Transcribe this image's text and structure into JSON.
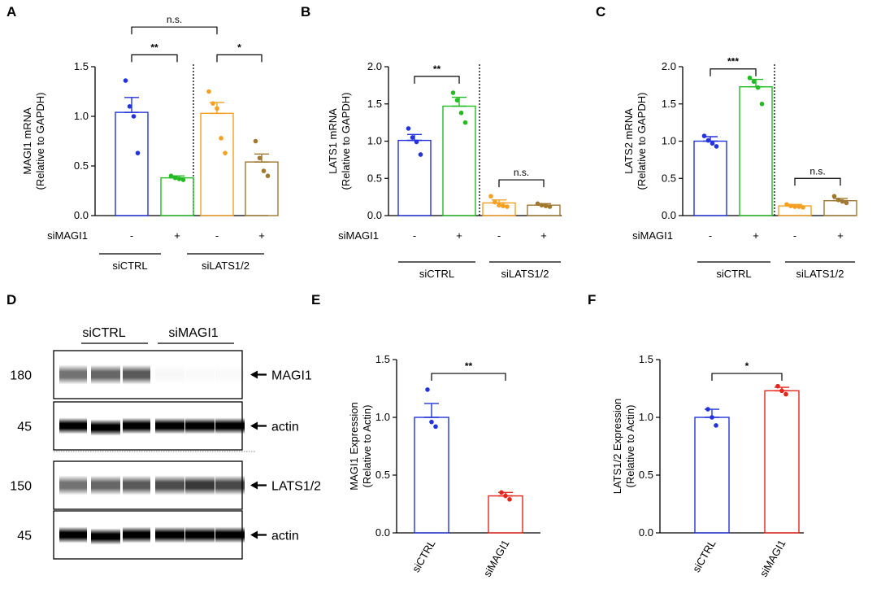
{
  "chart_data": [
    {
      "id": "A",
      "type": "bar",
      "ylabel_line1": "MAGI1 mRNA",
      "ylabel_line2": "(Relative to GAPDH)",
      "ylim": [
        0,
        1.5
      ],
      "yticks": [
        "0.0",
        "0.5",
        "1.0",
        "1.5"
      ],
      "row_label": "siMAGI1",
      "row_signs": [
        "-",
        "+",
        "-",
        "+"
      ],
      "groups": [
        "siCTRL",
        "siLATS1/2"
      ],
      "bars": [
        {
          "value": 1.04,
          "err": 0.15,
          "color": "#2233dd",
          "points": [
            1.36,
            1.1,
            1.0,
            0.63
          ]
        },
        {
          "value": 0.38,
          "err": 0.02,
          "color": "#22bb22",
          "points": [
            0.4,
            0.38,
            0.37,
            0.36
          ]
        },
        {
          "value": 1.03,
          "err": 0.11,
          "color": "#f5a020",
          "points": [
            1.25,
            1.13,
            1.08,
            0.78,
            0.63
          ]
        },
        {
          "value": 0.54,
          "err": 0.08,
          "color": "#a07830",
          "points": [
            0.75,
            0.58,
            0.45,
            0.4
          ]
        }
      ],
      "sig": [
        {
          "text": "**",
          "from": 0,
          "to": 1,
          "y": 1.62
        },
        {
          "text": "*",
          "from": 2,
          "to": 3,
          "y": 1.62
        },
        {
          "text": "n.s.",
          "from": 0,
          "to": 2,
          "y": 1.9
        }
      ]
    },
    {
      "id": "B",
      "type": "bar",
      "ylabel_line1": "LATS1 mRNA",
      "ylabel_line2": "(Relative to GAPDH)",
      "ylim": [
        0,
        2.0
      ],
      "yticks": [
        "0.0",
        "0.5",
        "1.0",
        "1.5",
        "2.0"
      ],
      "row_label": "siMAGI1",
      "row_signs": [
        "-",
        "+",
        "-",
        "+"
      ],
      "groups": [
        "siCTRL",
        "siLATS1/2"
      ],
      "bars": [
        {
          "value": 1.01,
          "err": 0.08,
          "color": "#2233dd",
          "points": [
            1.17,
            1.05,
            0.99,
            0.82
          ]
        },
        {
          "value": 1.47,
          "err": 0.12,
          "color": "#22bb22",
          "points": [
            1.65,
            1.55,
            1.38,
            1.25
          ]
        },
        {
          "value": 0.17,
          "err": 0.04,
          "color": "#f5a020",
          "points": [
            0.26,
            0.18,
            0.14,
            0.13,
            0.12
          ]
        },
        {
          "value": 0.14,
          "err": 0.02,
          "color": "#a07830",
          "points": [
            0.16,
            0.14,
            0.13,
            0.12
          ]
        }
      ],
      "sig": [
        {
          "text": "**",
          "from": 0,
          "to": 1,
          "y": 1.87
        },
        {
          "text": "n.s.",
          "from": 2,
          "to": 3,
          "y": 0.48
        }
      ]
    },
    {
      "id": "C",
      "type": "bar",
      "ylabel_line1": "LATS2 mRNA",
      "ylabel_line2": "(Relative to GAPDH)",
      "ylim": [
        0,
        2.0
      ],
      "yticks": [
        "0.0",
        "0.5",
        "1.0",
        "1.5",
        "2.0"
      ],
      "row_label": "siMAGI1",
      "row_signs": [
        "-",
        "+",
        "-",
        "+"
      ],
      "groups": [
        "siCTRL",
        "siLATS1/2"
      ],
      "bars": [
        {
          "value": 1.0,
          "err": 0.06,
          "color": "#2233dd",
          "points": [
            1.07,
            1.01,
            0.97,
            0.93
          ]
        },
        {
          "value": 1.73,
          "err": 0.1,
          "color": "#22bb22",
          "points": [
            1.85,
            1.8,
            1.72,
            1.5
          ]
        },
        {
          "value": 0.13,
          "err": 0.02,
          "color": "#f5a020",
          "points": [
            0.15,
            0.13,
            0.12,
            0.12,
            0.11
          ]
        },
        {
          "value": 0.2,
          "err": 0.03,
          "color": "#a07830",
          "points": [
            0.26,
            0.21,
            0.19,
            0.17
          ]
        }
      ],
      "sig": [
        {
          "text": "***",
          "from": 0,
          "to": 1,
          "y": 1.97
        },
        {
          "text": "n.s.",
          "from": 2,
          "to": 3,
          "y": 0.5
        }
      ]
    },
    {
      "id": "E",
      "type": "bar",
      "ylabel_line1": "MAGI1 Expression",
      "ylabel_line2": "(Relative to Actin)",
      "ylim": [
        0,
        1.5
      ],
      "yticks": [
        "0.0",
        "0.5",
        "1.0",
        "1.5"
      ],
      "categories": [
        "siCTRL",
        "siMAGI1"
      ],
      "bars": [
        {
          "value": 1.0,
          "err": 0.12,
          "color": "#2233dd",
          "points": [
            1.24,
            0.96,
            0.92
          ]
        },
        {
          "value": 0.32,
          "err": 0.03,
          "color": "#e8251a",
          "points": [
            0.35,
            0.32,
            0.29
          ]
        }
      ],
      "sig": [
        {
          "text": "**",
          "from": 0,
          "to": 1,
          "y": 1.38
        }
      ]
    },
    {
      "id": "F",
      "type": "bar",
      "ylabel_line1": "LATS1/2 Expression",
      "ylabel_line2": "(Relative to Actin)",
      "ylim": [
        0,
        1.5
      ],
      "yticks": [
        "0.0",
        "0.5",
        "1.0",
        "1.5"
      ],
      "categories": [
        "siCTRL",
        "siMAGI1"
      ],
      "bars": [
        {
          "value": 1.0,
          "err": 0.07,
          "color": "#2233dd",
          "points": [
            1.07,
            1.0,
            0.93
          ]
        },
        {
          "value": 1.23,
          "err": 0.03,
          "color": "#e8251a",
          "points": [
            1.27,
            1.23,
            1.2
          ]
        }
      ],
      "sig": [
        {
          "text": "*",
          "from": 0,
          "to": 1,
          "y": 1.38
        }
      ]
    }
  ],
  "blot": {
    "panel": "D",
    "group_labels": [
      "siCTRL",
      "siMAGI1"
    ],
    "rows": [
      {
        "mw": "180",
        "label": "MAGI1",
        "intensities": [
          0.55,
          0.6,
          0.65,
          0.03,
          0.02,
          0.02
        ]
      },
      {
        "mw": "45",
        "label": "actin",
        "intensities": [
          1,
          1,
          1,
          1,
          1,
          1
        ]
      },
      {
        "mw": "150",
        "label": "LATS1/2",
        "intensities": [
          0.55,
          0.6,
          0.65,
          0.7,
          0.78,
          0.72
        ]
      },
      {
        "mw": "45",
        "label": "actin",
        "intensities": [
          1,
          1,
          1,
          1,
          1,
          1
        ]
      }
    ]
  },
  "panel_labels": [
    "A",
    "B",
    "C",
    "D",
    "E",
    "F"
  ]
}
